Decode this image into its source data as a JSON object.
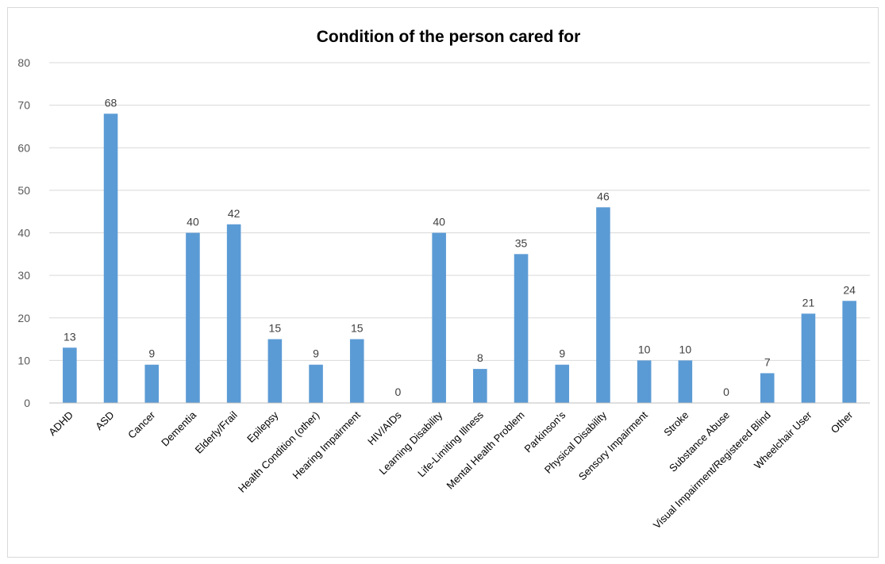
{
  "chart_data": {
    "type": "bar",
    "title": "Condition of the person cared for",
    "xlabel": "",
    "ylabel": "",
    "ylim": [
      0,
      80
    ],
    "yticks": [
      0,
      10,
      20,
      30,
      40,
      50,
      60,
      70,
      80
    ],
    "grid": true,
    "legend": "none",
    "bar_color": "#5b9bd5",
    "categories": [
      "ADHD",
      "ASD",
      "Cancer",
      "Dementia",
      "Elderly/Frail",
      "Epilepsy",
      "Health Condition (other)",
      "Hearing Impairment",
      "HIV/AIDs",
      "Learning Disability",
      "Life-Limiting Illness",
      "Mental Health Problem",
      "Parkinson's",
      "Physical Disability",
      "Sensory Impairment",
      "Stroke",
      "Substance Abuse",
      "Visual Impairment/Registered Blind",
      "Wheelchair User",
      "Other"
    ],
    "values": [
      13,
      68,
      9,
      40,
      42,
      15,
      9,
      15,
      0,
      40,
      8,
      35,
      9,
      46,
      10,
      10,
      0,
      7,
      21,
      24
    ]
  }
}
